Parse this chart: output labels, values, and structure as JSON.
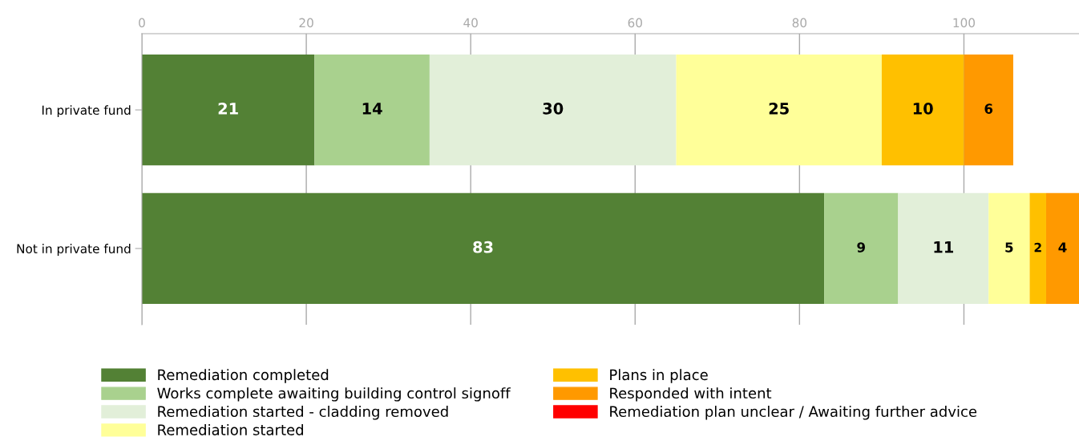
{
  "chart_data": {
    "type": "bar",
    "orientation": "horizontal",
    "stacked": true,
    "categories": [
      "In private fund",
      "Not in private fund"
    ],
    "series": [
      {
        "name": "Remediation completed",
        "color": "#538135",
        "values": [
          21,
          83
        ]
      },
      {
        "name": "Works complete awaiting building control signoff",
        "color": "#a9d18e",
        "values": [
          14,
          9
        ]
      },
      {
        "name": "Remediation started - cladding removed",
        "color": "#e2efd9",
        "values": [
          30,
          11
        ]
      },
      {
        "name": "Remediation started",
        "color": "#ffff99",
        "values": [
          25,
          5
        ]
      },
      {
        "name": "Plans in place",
        "color": "#ffc000",
        "values": [
          10,
          2
        ]
      },
      {
        "name": "Responded with intent",
        "color": "#ff9900",
        "values": [
          6,
          4
        ]
      },
      {
        "name": "Remediation plan unclear / Awaiting further advice",
        "color": "#ff0000",
        "values": [
          null,
          null
        ]
      }
    ],
    "xlim": [
      0,
      114
    ],
    "xticks": [
      0,
      20,
      40,
      60,
      80,
      100
    ],
    "grid": "x",
    "legend": "bottom",
    "data_labels": true
  }
}
